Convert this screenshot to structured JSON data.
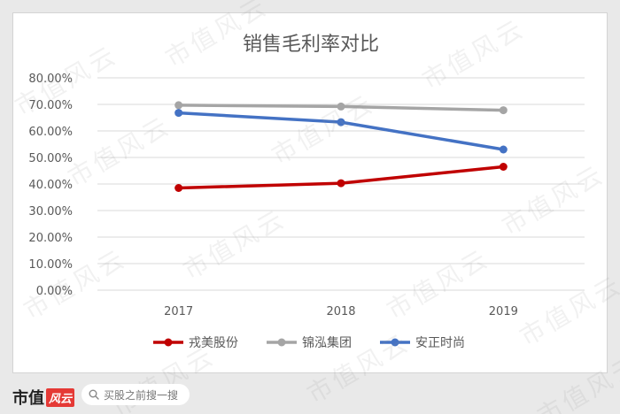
{
  "chart_data": {
    "type": "line",
    "title": "销售毛利率对比",
    "categories": [
      "2017",
      "2018",
      "2019"
    ],
    "ylim": [
      0,
      0.8
    ],
    "yticks": [
      "0.00%",
      "10.00%",
      "20.00%",
      "30.00%",
      "40.00%",
      "50.00%",
      "60.00%",
      "70.00%",
      "80.00%"
    ],
    "grid": true,
    "legend_position": "bottom",
    "series": [
      {
        "name": "戎美股份",
        "color": "#c00000",
        "values": [
          0.385,
          0.403,
          0.465
        ]
      },
      {
        "name": "锦泓集团",
        "color": "#a5a5a5",
        "values": [
          0.697,
          0.692,
          0.678
        ]
      },
      {
        "name": "安正时尚",
        "color": "#4472c4",
        "values": [
          0.668,
          0.633,
          0.53
        ]
      }
    ]
  },
  "footer": {
    "brand_text": "市值",
    "brand_badge": "风云",
    "search_placeholder": "买股之前搜一搜",
    "search_icon": "search-icon"
  },
  "watermark": "市值风云"
}
